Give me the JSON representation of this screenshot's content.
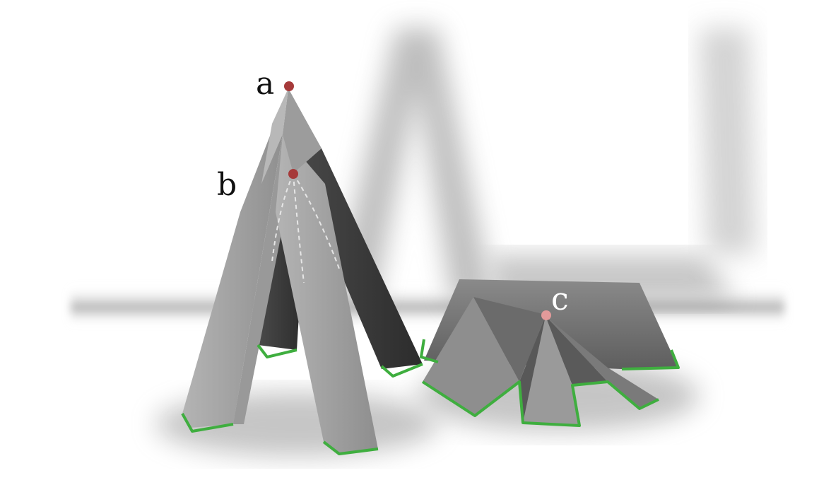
{
  "labels": {
    "a": "a",
    "b": "b",
    "c": "c"
  },
  "colors": {
    "background": "#ffffff",
    "floor_shadow": "#8c8c8c",
    "surface_light": "#a6a6a6",
    "surface_mid": "#7d7d7d",
    "surface_dark": "#3a3a3a",
    "base_outline": "#3fae3f",
    "vertex_point": "#a63a3a",
    "vertex_point_c": "#e39a9a",
    "label_dark": "#111111",
    "label_light": "#ffffff",
    "dashed_path": "#e6e6e6"
  },
  "objects": [
    {
      "name": "tall-pyramid-structure",
      "legs": 4
    },
    {
      "name": "low-roof-structure",
      "legs": 5
    }
  ]
}
